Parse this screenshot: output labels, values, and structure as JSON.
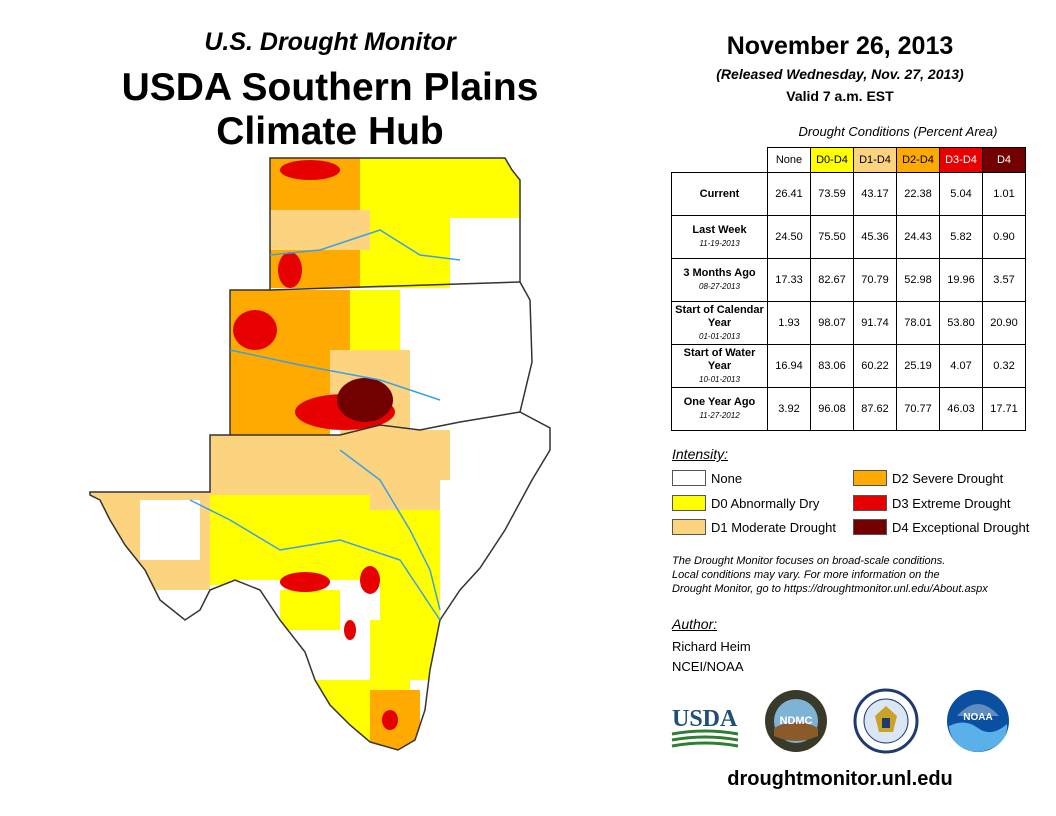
{
  "header": {
    "subtitle": "U.S. Drought Monitor",
    "title_line1": "USDA Southern Plains",
    "title_line2": "Climate Hub"
  },
  "map_info": {
    "region": "Kansas, Oklahoma, Texas"
  },
  "release": {
    "date": "November 26, 2013",
    "released": "(Released Wednesday, Nov. 27, 2013)",
    "valid": "Valid 7 a.m. EST"
  },
  "table": {
    "caption": "Drought Conditions (Percent Area)",
    "columns": [
      "None",
      "D0-D4",
      "D1-D4",
      "D2-D4",
      "D3-D4",
      "D4"
    ],
    "column_colors": [
      "#ffffff",
      "#ffff00",
      "#fcd37f",
      "#ffaa00",
      "#e60000",
      "#730000"
    ],
    "column_text_colors": [
      "#000000",
      "#000000",
      "#000000",
      "#000000",
      "#ffffff",
      "#ffffff"
    ],
    "rows": [
      {
        "label": "Current",
        "date": "",
        "values": [
          "26.41",
          "73.59",
          "43.17",
          "22.38",
          "5.04",
          "1.01"
        ]
      },
      {
        "label": "Last Week",
        "date": "11-19-2013",
        "values": [
          "24.50",
          "75.50",
          "45.36",
          "24.43",
          "5.82",
          "0.90"
        ]
      },
      {
        "label": "3 Months Ago",
        "date": "08-27-2013",
        "values": [
          "17.33",
          "82.67",
          "70.79",
          "52.98",
          "19.96",
          "3.57"
        ]
      },
      {
        "label": "Start of Calendar Year",
        "date": "01-01-2013",
        "values": [
          "1.93",
          "98.07",
          "91.74",
          "78.01",
          "53.80",
          "20.90"
        ]
      },
      {
        "label": "Start of Water Year",
        "date": "10-01-2013",
        "values": [
          "16.94",
          "83.06",
          "60.22",
          "25.19",
          "4.07",
          "0.32"
        ]
      },
      {
        "label": "One Year Ago",
        "date": "11-27-2012",
        "values": [
          "3.92",
          "96.08",
          "87.62",
          "70.77",
          "46.03",
          "17.71"
        ]
      }
    ]
  },
  "legend": {
    "heading": "Intensity:",
    "items": [
      {
        "label": "None",
        "color": "#ffffff"
      },
      {
        "label": "D0 Abnormally Dry",
        "color": "#ffff00"
      },
      {
        "label": "D1 Moderate Drought",
        "color": "#fcd37f"
      },
      {
        "label": "D2 Severe Drought",
        "color": "#ffaa00"
      },
      {
        "label": "D3 Extreme Drought",
        "color": "#e60000"
      },
      {
        "label": "D4 Exceptional Drought",
        "color": "#730000"
      }
    ]
  },
  "note": {
    "line1": "The Drought Monitor focuses on broad-scale conditions.",
    "line2": "Local conditions may vary. For more information on the",
    "line3": "Drought Monitor, go to https://droughtmonitor.unl.edu/About.aspx"
  },
  "author": {
    "heading": "Author:",
    "name": "Richard Heim",
    "org": "NCEI/NOAA"
  },
  "logos": {
    "usda": "USDA",
    "ndmc": "NDMC",
    "noaa": "NOAA"
  },
  "footer": {
    "url": "droughtmonitor.unl.edu"
  }
}
